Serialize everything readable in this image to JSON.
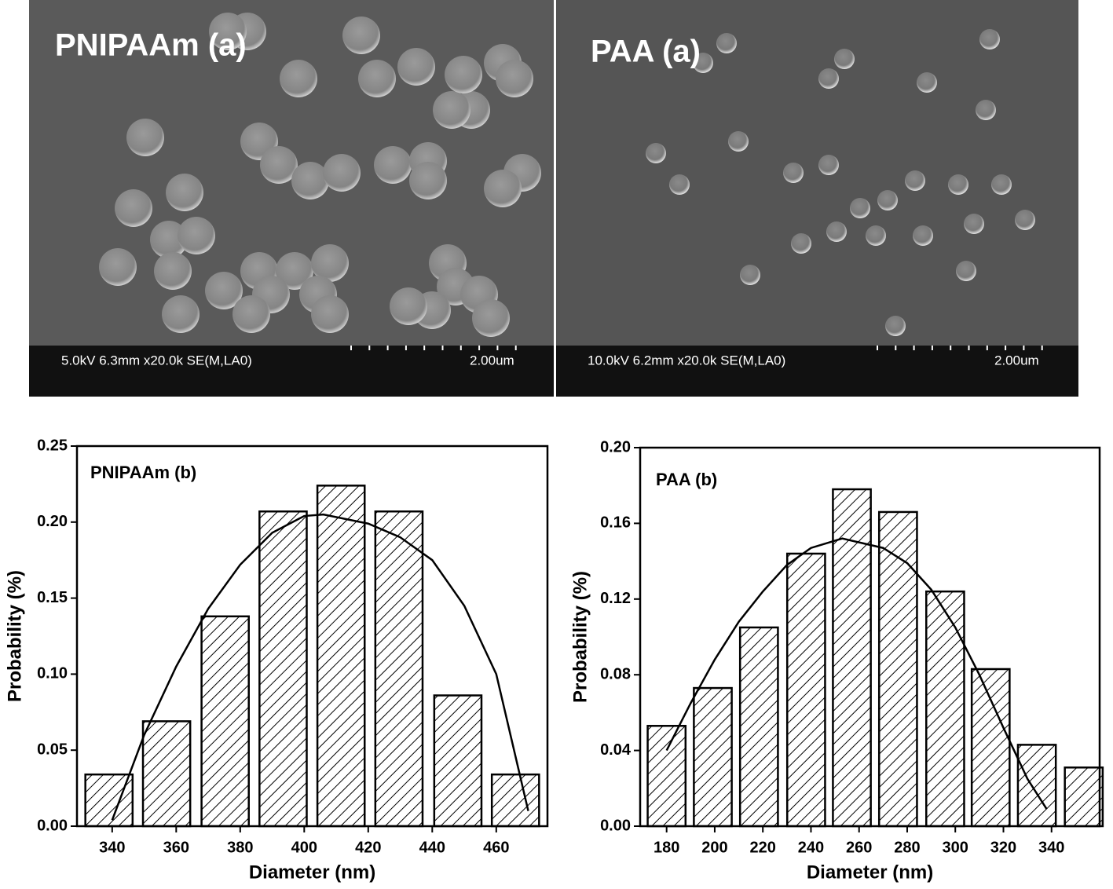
{
  "images": [
    {
      "label": "PNIPAAm (a)",
      "info": "5.0kV 6.3mm x20.0k SE(M,LA0)",
      "scale": "2.00um"
    },
    {
      "label": "PAA (a)",
      "info": "10.0kV 6.2mm x20.0k SE(M,LA0)",
      "scale": "2.00um"
    }
  ],
  "chart_data": [
    {
      "type": "bar",
      "title": "PNIPAAm (b)",
      "x_label": "Diameter (nm)",
      "y_label": "Probability (%)",
      "x": [
        339,
        357,
        375.3,
        393.4,
        411.5,
        429.6,
        448,
        466
      ],
      "values": [
        0.034,
        0.069,
        0.138,
        0.207,
        0.224,
        0.207,
        0.086,
        0.034
      ],
      "color": "#000000",
      "xlim": [
        329,
        476
      ],
      "xticks": [
        340,
        360,
        380,
        400,
        420,
        440,
        460
      ],
      "ylim": [
        0,
        0.25
      ],
      "yticks": [
        {
          "value": 0,
          "label": "0.00"
        },
        0.05,
        {
          "value": 0.1,
          "label": "0.10"
        },
        0.15,
        {
          "value": 0.2,
          "label": "0.20"
        },
        0.25
      ],
      "curve": {
        "x": [
          340,
          350,
          360,
          370,
          380,
          390,
          400,
          406,
          420,
          430,
          440,
          450,
          460,
          470
        ],
        "values": [
          0.004,
          0.06,
          0.105,
          0.143,
          0.172,
          0.193,
          0.204,
          0.205,
          0.199,
          0.19,
          0.175,
          0.145,
          0.1,
          0.01
        ]
      }
    },
    {
      "type": "bar",
      "title": "PAA (b)",
      "x_label": "Diameter (nm)",
      "y_label": "Probability (%)",
      "x": [
        180,
        199.2,
        218.4,
        238,
        257,
        276.2,
        295.8,
        314.7,
        333.9,
        353.4
      ],
      "values": [
        0.053,
        0.073,
        0.105,
        0.144,
        0.178,
        0.166,
        0.124,
        0.083,
        0.043,
        0.031
      ],
      "color": "#000000",
      "xlim": [
        169,
        360
      ],
      "xticks": [
        180,
        200,
        220,
        240,
        260,
        280,
        300,
        320,
        340
      ],
      "ylim": [
        0,
        0.2
      ],
      "yticks": [
        {
          "value": 0,
          "label": "0.00"
        },
        {
          "value": 0.04,
          "label": "0.04"
        },
        0.08,
        {
          "value": 0.12,
          "label": "0.12"
        },
        {
          "value": 0.16,
          "label": "0.16"
        },
        {
          "value": 0.2,
          "label": "0.20"
        }
      ],
      "curve": {
        "x": [
          180,
          190,
          200,
          210,
          220,
          230,
          240,
          253,
          270,
          280,
          290,
          300,
          310,
          320,
          330,
          338
        ],
        "values": [
          0.04,
          0.065,
          0.088,
          0.108,
          0.124,
          0.138,
          0.147,
          0.152,
          0.147,
          0.139,
          0.125,
          0.105,
          0.08,
          0.052,
          0.025,
          0.009
        ]
      }
    }
  ]
}
